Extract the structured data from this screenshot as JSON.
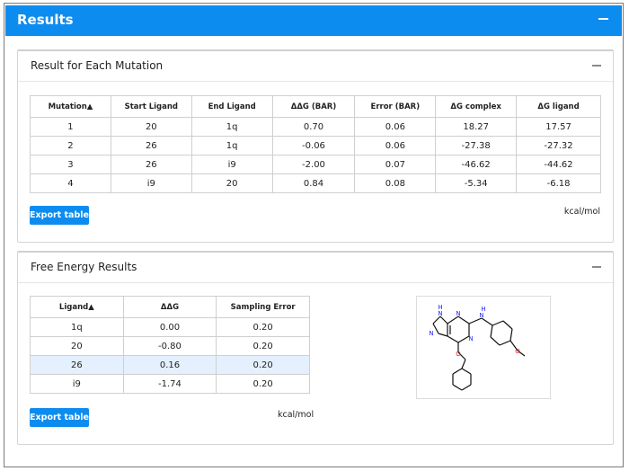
{
  "header": {
    "title": "Results"
  },
  "mutation_card": {
    "title": "Result for Each Mutation",
    "columns": [
      "Mutation▲",
      "Start Ligand",
      "End Ligand",
      "ΔΔG (BAR)",
      "Error (BAR)",
      "ΔG complex",
      "ΔG ligand"
    ],
    "rows": [
      [
        "1",
        "20",
        "1q",
        "0.70",
        "0.06",
        "18.27",
        "17.57"
      ],
      [
        "2",
        "26",
        "1q",
        "-0.06",
        "0.06",
        "-27.38",
        "-27.32"
      ],
      [
        "3",
        "26",
        "i9",
        "-2.00",
        "0.07",
        "-46.62",
        "-44.62"
      ],
      [
        "4",
        "i9",
        "20",
        "0.84",
        "0.08",
        "-5.34",
        "-6.18"
      ]
    ],
    "export_label": "Export table",
    "unit": "kcal/mol"
  },
  "free_energy_card": {
    "title": "Free Energy Results",
    "columns": [
      "Ligand▲",
      "ΔΔG",
      "Sampling Error"
    ],
    "rows": [
      [
        "1q",
        "0.00",
        "0.20"
      ],
      [
        "20",
        "-0.80",
        "0.20"
      ],
      [
        "26",
        "0.16",
        "0.20"
      ],
      [
        "i9",
        "-1.74",
        "0.20"
      ]
    ],
    "highlighted_row": 2,
    "export_label": "Export table",
    "unit": "kcal/mol",
    "molecule_atoms": [
      "H",
      "N",
      "N",
      "N",
      "N",
      "N",
      "H",
      "O",
      "O"
    ]
  },
  "colors": {
    "accent": "#0d8cf0",
    "highlight_row": "#e4f0fd",
    "nitrogen": "#1a1aff",
    "oxygen": "#e02020"
  }
}
